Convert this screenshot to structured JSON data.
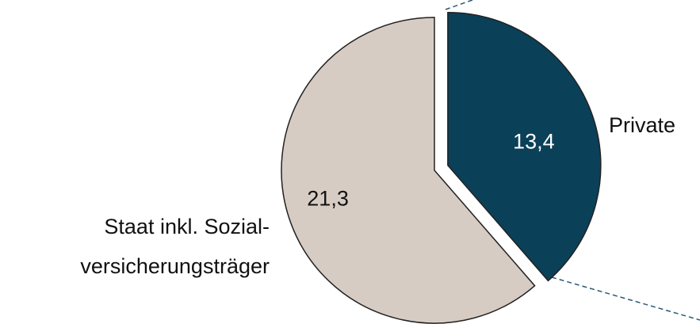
{
  "chart_data": {
    "type": "pie",
    "categories": [
      "Private",
      "Staat inkl. Sozial-\nversicherungsträger"
    ],
    "values": [
      13.4,
      21.3
    ],
    "value_labels": [
      "13,4",
      "21,3"
    ],
    "colors": [
      "#0b4059",
      "#d7ccc4"
    ]
  }
}
